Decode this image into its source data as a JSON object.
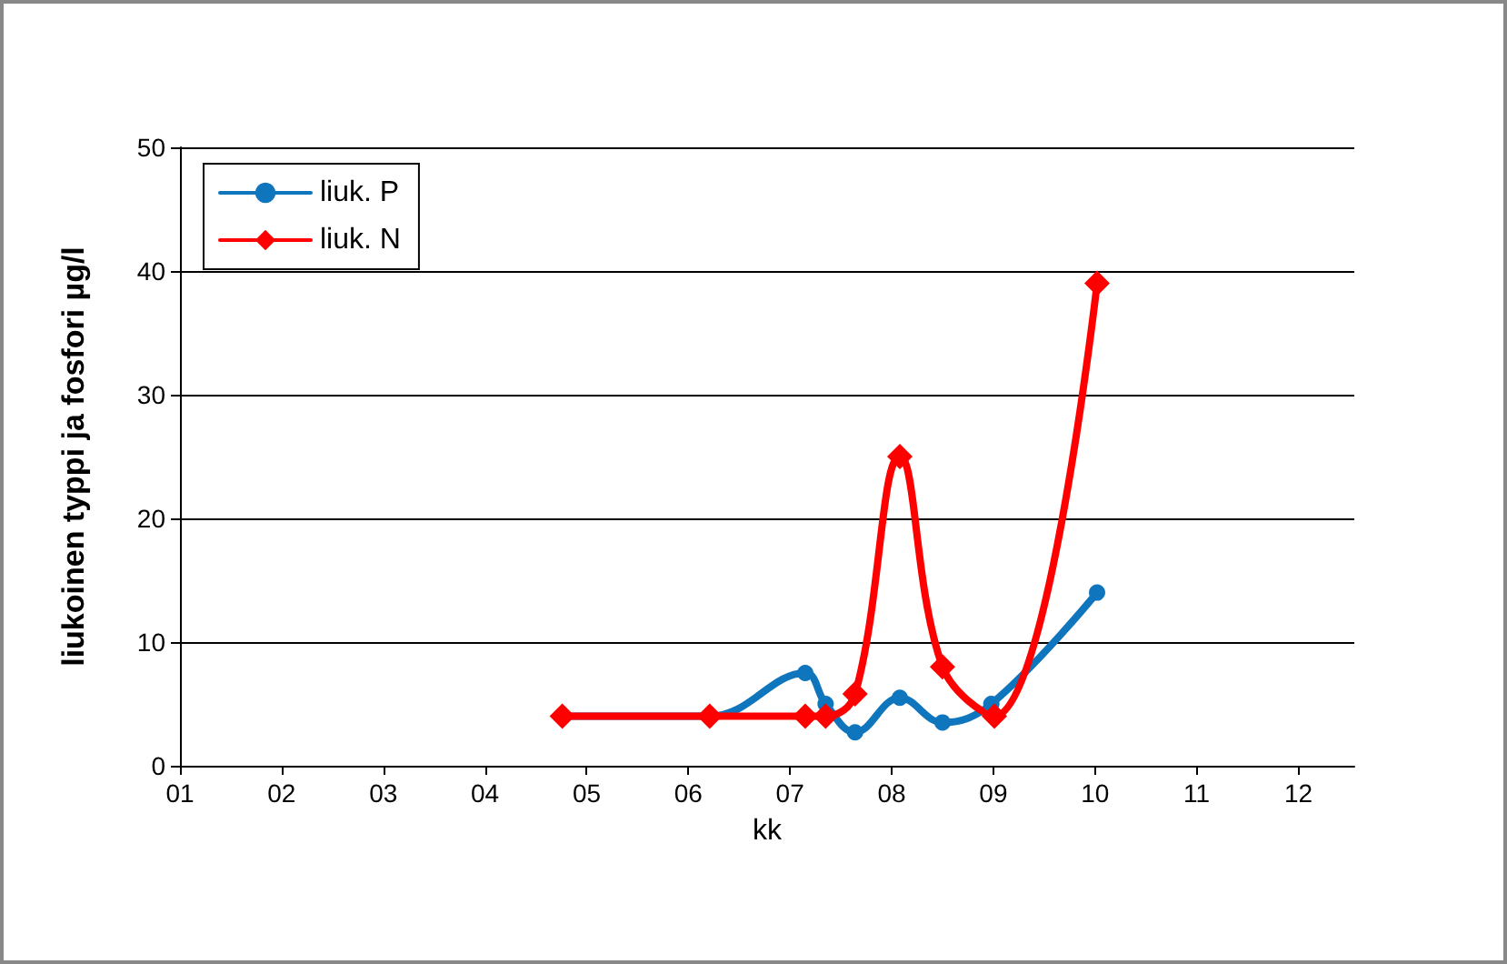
{
  "chart_data": {
    "type": "line",
    "xlabel": "kk",
    "ylabel": "liukoinen typpi ja fosfori µg/l",
    "xlim": [
      1,
      12.55
    ],
    "xticks": [
      {
        "value": 1,
        "label": "01"
      },
      {
        "value": 2,
        "label": "02"
      },
      {
        "value": 3,
        "label": "03"
      },
      {
        "value": 4,
        "label": "04"
      },
      {
        "value": 5,
        "label": "05"
      },
      {
        "value": 6,
        "label": "06"
      },
      {
        "value": 7,
        "label": "07"
      },
      {
        "value": 8,
        "label": "08"
      },
      {
        "value": 9,
        "label": "09"
      },
      {
        "value": 10,
        "label": "10"
      },
      {
        "value": 11,
        "label": "11"
      },
      {
        "value": 12,
        "label": "12"
      }
    ],
    "ylim": [
      0,
      50
    ],
    "yticks": [
      0,
      10,
      20,
      30,
      40,
      50
    ],
    "grid": "y",
    "legend": "top left",
    "series": [
      {
        "name": "liuk. P",
        "color": "#0f75bc",
        "marker": "circle",
        "x": [
          4.76,
          6.21,
          7.15,
          7.35,
          7.64,
          8.08,
          8.5,
          8.98,
          10.02
        ],
        "values": [
          4,
          4,
          7.5,
          5,
          2.7,
          5.5,
          3.5,
          5,
          14
        ]
      },
      {
        "name": "liuk. N",
        "color": "#ff0000",
        "marker": "diamond",
        "x": [
          4.76,
          6.21,
          7.15,
          7.35,
          7.64,
          8.08,
          8.5,
          9.01,
          10.02
        ],
        "values": [
          4,
          4,
          4,
          4,
          5.8,
          25,
          8,
          4,
          39
        ]
      }
    ]
  }
}
